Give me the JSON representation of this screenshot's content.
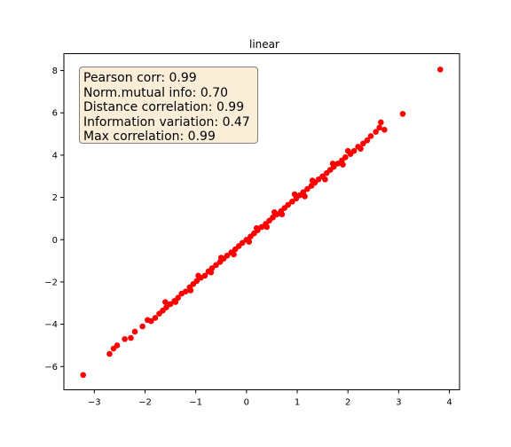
{
  "chart_data": {
    "type": "scatter",
    "title": "linear",
    "xlabel": "",
    "ylabel": "",
    "xlim": [
      -3.6,
      4.2
    ],
    "ylim": [
      -7.1,
      8.8
    ],
    "x_ticks": [
      -3,
      -2,
      -1,
      0,
      1,
      2,
      3,
      4
    ],
    "y_ticks": [
      -6,
      -4,
      -2,
      0,
      2,
      4,
      6,
      8
    ],
    "x_tick_labels": [
      "−3",
      "−2",
      "−1",
      "0",
      "1",
      "2",
      "3",
      "4"
    ],
    "y_tick_labels": [
      "−6",
      "−4",
      "−2",
      "0",
      "2",
      "4",
      "6",
      "8"
    ],
    "grid": false,
    "marker_color": "#ff0000",
    "points": [
      [
        -3.22,
        -6.4
      ],
      [
        -2.7,
        -5.4
      ],
      [
        -2.62,
        -5.15
      ],
      [
        -2.55,
        -5.0
      ],
      [
        -2.4,
        -4.7
      ],
      [
        -2.28,
        -4.65
      ],
      [
        -2.2,
        -4.35
      ],
      [
        -2.05,
        -4.1
      ],
      [
        -1.95,
        -3.8
      ],
      [
        -1.88,
        -3.85
      ],
      [
        -1.8,
        -3.7
      ],
      [
        -1.72,
        -3.5
      ],
      [
        -1.65,
        -3.35
      ],
      [
        -1.58,
        -3.2
      ],
      [
        -1.5,
        -3.05
      ],
      [
        -1.42,
        -2.9
      ],
      [
        -1.35,
        -2.75
      ],
      [
        -1.28,
        -2.55
      ],
      [
        -1.2,
        -2.45
      ],
      [
        -1.12,
        -2.25
      ],
      [
        -1.05,
        -2.1
      ],
      [
        -0.98,
        -1.95
      ],
      [
        -0.9,
        -1.8
      ],
      [
        -0.82,
        -1.7
      ],
      [
        -0.75,
        -1.5
      ],
      [
        -0.68,
        -1.35
      ],
      [
        -0.6,
        -1.2
      ],
      [
        -0.52,
        -1.05
      ],
      [
        -0.45,
        -0.9
      ],
      [
        -0.38,
        -0.75
      ],
      [
        -0.3,
        -0.6
      ],
      [
        -0.22,
        -0.45
      ],
      [
        -0.15,
        -0.3
      ],
      [
        -0.08,
        -0.15
      ],
      [
        0.0,
        0.0
      ],
      [
        0.08,
        0.15
      ],
      [
        0.15,
        0.3
      ],
      [
        0.22,
        0.45
      ],
      [
        0.3,
        0.6
      ],
      [
        0.38,
        0.75
      ],
      [
        0.45,
        0.9
      ],
      [
        0.52,
        1.05
      ],
      [
        0.6,
        1.2
      ],
      [
        0.68,
        1.35
      ],
      [
        0.75,
        1.5
      ],
      [
        0.82,
        1.65
      ],
      [
        0.9,
        1.8
      ],
      [
        0.98,
        1.95
      ],
      [
        1.05,
        2.1
      ],
      [
        1.12,
        2.25
      ],
      [
        1.2,
        2.4
      ],
      [
        1.28,
        2.55
      ],
      [
        1.35,
        2.7
      ],
      [
        1.42,
        2.85
      ],
      [
        1.5,
        3.0
      ],
      [
        1.58,
        3.15
      ],
      [
        1.65,
        3.3
      ],
      [
        1.72,
        3.45
      ],
      [
        1.8,
        3.6
      ],
      [
        1.88,
        3.75
      ],
      [
        1.95,
        3.9
      ],
      [
        2.05,
        4.05
      ],
      [
        2.12,
        4.2
      ],
      [
        2.2,
        4.4
      ],
      [
        2.3,
        4.55
      ],
      [
        2.38,
        4.7
      ],
      [
        2.45,
        4.9
      ],
      [
        2.55,
        5.1
      ],
      [
        2.62,
        5.3
      ],
      [
        2.65,
        5.55
      ],
      [
        2.72,
        5.2
      ],
      [
        3.08,
        5.95
      ],
      [
        3.82,
        8.05
      ],
      [
        -1.6,
        -2.95
      ],
      [
        -1.4,
        -2.95
      ],
      [
        -1.1,
        -2.4
      ],
      [
        -0.95,
        -1.7
      ],
      [
        -0.7,
        -1.55
      ],
      [
        -0.5,
        -0.85
      ],
      [
        -0.25,
        -0.7
      ],
      [
        0.05,
        -0.1
      ],
      [
        0.2,
        0.55
      ],
      [
        0.4,
        0.6
      ],
      [
        0.55,
        1.3
      ],
      [
        0.7,
        1.2
      ],
      [
        0.95,
        2.15
      ],
      [
        1.15,
        2.05
      ],
      [
        1.3,
        2.8
      ],
      [
        1.55,
        2.85
      ],
      [
        1.7,
        3.6
      ],
      [
        1.9,
        3.55
      ],
      [
        2.0,
        4.2
      ],
      [
        2.25,
        4.3
      ]
    ]
  },
  "stats_box": {
    "lines": [
      "Pearson corr: 0.99",
      "Norm.mutual info: 0.70",
      "Distance correlation: 0.99",
      "Information variation: 0.47",
      "Max correlation: 0.99"
    ]
  }
}
